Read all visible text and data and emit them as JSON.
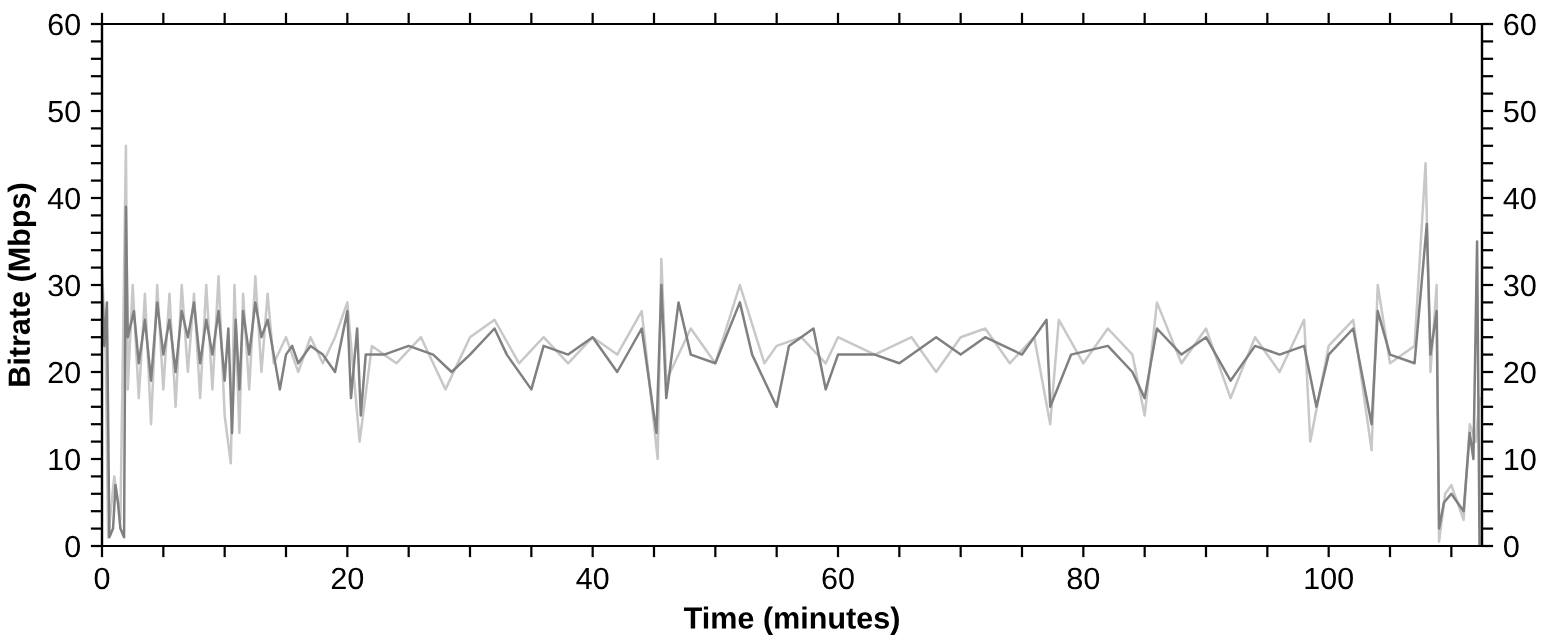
{
  "chart_data": {
    "type": "line",
    "xlabel": "Time (minutes)",
    "ylabel": "Bitrate (Mbps)",
    "xlim": [
      0,
      112.5
    ],
    "ylim": [
      0,
      60
    ],
    "y2lim": [
      0,
      60
    ],
    "xticks": [
      0,
      {
        "value": 5,
        "label": null
      },
      {
        "value": 10,
        "label": null
      },
      {
        "value": 15,
        "label": null
      },
      20,
      {
        "value": 25,
        "label": null
      },
      {
        "value": 30,
        "label": null
      },
      {
        "value": 35,
        "label": null
      },
      40,
      {
        "value": 45,
        "label": null
      },
      {
        "value": 50,
        "label": null
      },
      {
        "value": 55,
        "label": null
      },
      60,
      {
        "value": 65,
        "label": null
      },
      {
        "value": 70,
        "label": null
      },
      {
        "value": 75,
        "label": null
      },
      80,
      {
        "value": 85,
        "label": null
      },
      {
        "value": 90,
        "label": null
      },
      {
        "value": 95,
        "label": null
      },
      100,
      {
        "value": 105,
        "label": null
      },
      {
        "value": 110,
        "label": null
      }
    ],
    "yticks": [
      0,
      {
        "value": 2,
        "label": null
      },
      {
        "value": 4,
        "label": null
      },
      {
        "value": 6,
        "label": null
      },
      {
        "value": 8,
        "label": null
      },
      10,
      {
        "value": 12,
        "label": null
      },
      {
        "value": 14,
        "label": null
      },
      {
        "value": 16,
        "label": null
      },
      {
        "value": 18,
        "label": null
      },
      20,
      {
        "value": 22,
        "label": null
      },
      {
        "value": 24,
        "label": null
      },
      {
        "value": 26,
        "label": null
      },
      {
        "value": 28,
        "label": null
      },
      30,
      {
        "value": 32,
        "label": null
      },
      {
        "value": 34,
        "label": null
      },
      {
        "value": 36,
        "label": null
      },
      {
        "value": 38,
        "label": null
      },
      40,
      {
        "value": 42,
        "label": null
      },
      {
        "value": 44,
        "label": null
      },
      {
        "value": 46,
        "label": null
      },
      {
        "value": 48,
        "label": null
      },
      50,
      {
        "value": 52,
        "label": null
      },
      {
        "value": 54,
        "label": null
      },
      {
        "value": 56,
        "label": null
      },
      {
        "value": 58,
        "label": null
      },
      60
    ],
    "y2ticks": [
      0,
      {
        "value": 2,
        "label": null
      },
      {
        "value": 4,
        "label": null
      },
      {
        "value": 6,
        "label": null
      },
      {
        "value": 8,
        "label": null
      },
      10,
      {
        "value": 12,
        "label": null
      },
      {
        "value": 14,
        "label": null
      },
      {
        "value": 16,
        "label": null
      },
      {
        "value": 18,
        "label": null
      },
      20,
      {
        "value": 22,
        "label": null
      },
      {
        "value": 24,
        "label": null
      },
      {
        "value": 26,
        "label": null
      },
      {
        "value": 28,
        "label": null
      },
      30,
      {
        "value": 32,
        "label": null
      },
      {
        "value": 34,
        "label": null
      },
      {
        "value": 36,
        "label": null
      },
      {
        "value": 38,
        "label": null
      },
      40,
      {
        "value": 42,
        "label": null
      },
      {
        "value": 44,
        "label": null
      },
      {
        "value": 46,
        "label": null
      },
      {
        "value": 48,
        "label": null
      },
      50,
      {
        "value": 52,
        "label": null
      },
      {
        "value": 54,
        "label": null
      },
      {
        "value": 56,
        "label": null
      },
      {
        "value": 58,
        "label": null
      },
      60
    ],
    "grid": false,
    "legend": false,
    "marker": "none",
    "line_style": "solid",
    "series": [
      {
        "color": "#c8c8c8",
        "x": [
          0,
          0.3,
          0.5,
          1,
          1.5,
          1.95,
          2.1,
          2.5,
          3,
          3.5,
          4,
          4.5,
          5,
          5.5,
          6,
          6.5,
          7,
          7.5,
          8,
          8.5,
          9,
          9.5,
          10,
          10.5,
          10.8,
          11.2,
          11.5,
          12,
          12.5,
          13,
          13.5,
          14,
          15,
          16,
          17,
          18,
          19,
          20,
          21,
          22,
          24,
          26,
          28,
          30,
          32,
          34,
          36,
          38,
          40,
          42,
          44,
          45.3,
          45.6,
          46,
          48,
          50,
          52,
          54,
          55,
          57,
          59,
          60,
          63,
          66,
          68,
          70,
          72,
          74,
          76,
          77.3,
          78,
          80,
          82,
          84,
          85,
          86,
          88,
          90,
          92,
          94,
          96,
          98,
          98.5,
          100,
          102,
          103.5,
          104,
          105,
          107,
          107.9,
          108.3,
          108.8,
          109,
          109.5,
          110,
          111,
          111.5,
          112,
          112.3
        ],
        "values": [
          32,
          22,
          1,
          8,
          3,
          46,
          18,
          30,
          17,
          29,
          14,
          30,
          18,
          29,
          16,
          30,
          20,
          29,
          17,
          30,
          18,
          31,
          15,
          9.5,
          30,
          13,
          29,
          18,
          31,
          20,
          29,
          21,
          24,
          20,
          24,
          21,
          24,
          28,
          12,
          23,
          21,
          24,
          18,
          24,
          26,
          21,
          24,
          21,
          24,
          22,
          27,
          10,
          33,
          19,
          25,
          21,
          30,
          21,
          23,
          24,
          21,
          24,
          22,
          24,
          20,
          24,
          25,
          21,
          24,
          14,
          26,
          21,
          25,
          22,
          15,
          28,
          21,
          25,
          17,
          24,
          20,
          26,
          12,
          23,
          26,
          11,
          30,
          21,
          23,
          44,
          20,
          30,
          0.5,
          6,
          7,
          3,
          14,
          12,
          17
        ]
      },
      {
        "color": "#808080",
        "x": [
          0,
          0.2,
          0.4,
          0.6,
          0.9,
          1.1,
          1.3,
          1.5,
          1.8,
          1.95,
          2.1,
          2.6,
          3,
          3.5,
          4,
          4.5,
          5,
          5.5,
          6,
          6.5,
          7,
          7.5,
          8,
          8.5,
          9,
          9.5,
          10,
          10.3,
          10.6,
          10.9,
          11.2,
          11.5,
          12,
          12.5,
          13,
          13.5,
          14,
          14.5,
          15,
          15.5,
          16,
          17,
          18,
          19,
          20,
          20.3,
          20.8,
          21.1,
          21.5,
          23,
          25,
          27,
          28.5,
          30,
          32,
          33,
          35,
          36,
          38,
          40,
          42,
          44,
          45.2,
          45.6,
          46,
          47,
          48,
          50,
          52,
          53,
          55,
          56,
          58,
          59,
          60,
          63,
          65,
          68,
          70,
          72,
          75,
          77,
          77.3,
          79,
          82,
          84,
          85,
          86,
          88,
          90,
          92,
          94,
          96,
          98,
          99,
          100,
          102,
          103.5,
          104,
          105,
          107,
          108,
          108.3,
          108.8,
          109,
          109.4,
          110,
          110.5,
          111,
          111.5,
          111.8,
          112.1,
          112.3
        ],
        "values": [
          30,
          23,
          28,
          1,
          2,
          7,
          5,
          2,
          1,
          39,
          24,
          27,
          21,
          26,
          19,
          28,
          22,
          26,
          20,
          27,
          24,
          28,
          21,
          26,
          22,
          27,
          19,
          25,
          13,
          26,
          18,
          27,
          22,
          28,
          24,
          26,
          22,
          18,
          22,
          23,
          21,
          23,
          22,
          20,
          27,
          17,
          25,
          15,
          22,
          22,
          23,
          22,
          20,
          22,
          25,
          22,
          18,
          23,
          22,
          24,
          20,
          25,
          13,
          30,
          17,
          28,
          22,
          21,
          28,
          22,
          16,
          23,
          25,
          18,
          22,
          22,
          21,
          24,
          22,
          24,
          22,
          26,
          16,
          22,
          23,
          20,
          17,
          25,
          22,
          24,
          19,
          23,
          22,
          23,
          16,
          22,
          25,
          14,
          27,
          22,
          21,
          37,
          22,
          27,
          2,
          5,
          6,
          5,
          4,
          13,
          10,
          35,
          0
        ]
      }
    ]
  }
}
